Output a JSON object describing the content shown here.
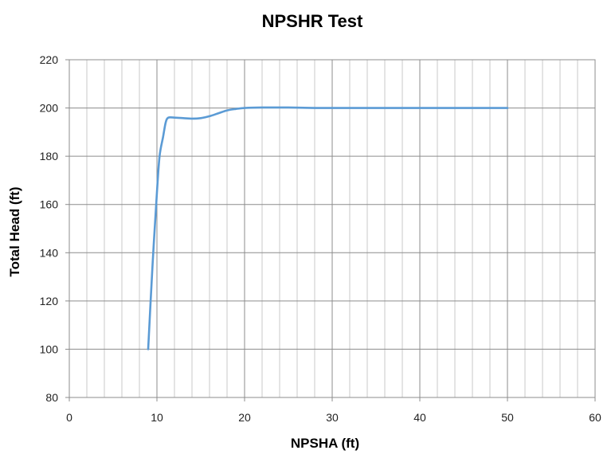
{
  "chart_data": {
    "type": "line",
    "title": "NPSHR Test",
    "xlabel": "NPSHA (ft)",
    "ylabel": "Total Head (ft)",
    "xlim": [
      0,
      60
    ],
    "ylim": [
      80,
      220
    ],
    "x_ticks": [
      0,
      10,
      20,
      30,
      40,
      50,
      60
    ],
    "y_ticks": [
      80,
      100,
      120,
      140,
      160,
      180,
      200,
      220
    ],
    "x_minor_step": 2,
    "grid": true,
    "line_color": "#5b9bd5",
    "series": [
      {
        "x": [
          9,
          9.5,
          10,
          10.3,
          10.7,
          11,
          11.3,
          12,
          13,
          14,
          15,
          16,
          17,
          18,
          19,
          20,
          22,
          25,
          28,
          30,
          35,
          40,
          45,
          50
        ],
        "y": [
          100,
          135,
          165,
          180,
          188,
          194,
          196,
          196,
          195.8,
          195.6,
          195.8,
          196.6,
          197.8,
          199,
          199.6,
          200,
          200.2,
          200.2,
          200,
          200,
          200,
          200,
          200,
          200
        ]
      }
    ]
  }
}
